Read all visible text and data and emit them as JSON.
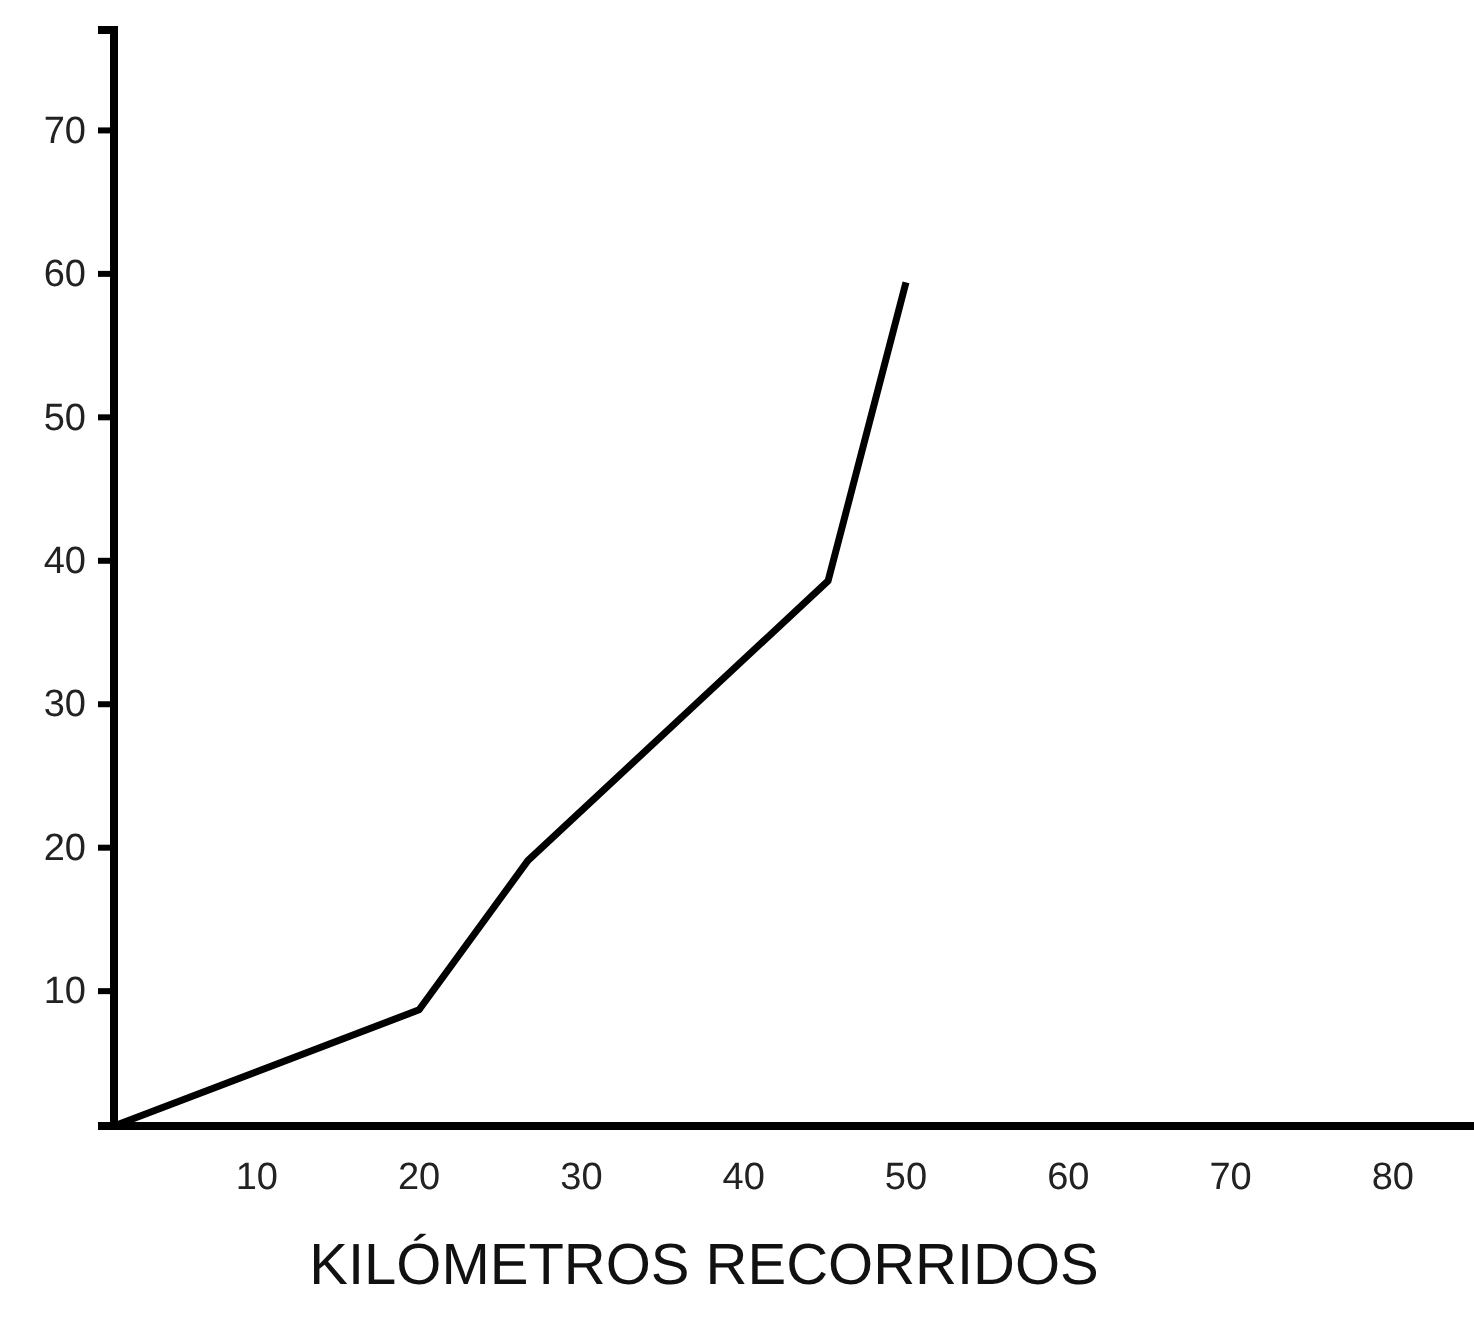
{
  "chart_data": {
    "type": "line",
    "xlabel": "KILÓMETROS RECORRIDOS",
    "x": [
      1.2,
      20,
      26.7,
      45.2,
      50
    ],
    "series": [
      {
        "color": "#000000",
        "values": [
          0.6,
          8.7,
          19.1,
          38.6,
          59.4
        ]
      }
    ],
    "xlim": [
      1.2,
      85
    ],
    "ylim": [
      0.6,
      77
    ],
    "xticks": [
      10,
      20,
      30,
      40,
      50,
      60,
      70,
      80
    ],
    "yticks": [
      10,
      20,
      30,
      40,
      50,
      60,
      70
    ],
    "marker": "none",
    "line_style": "solid"
  }
}
